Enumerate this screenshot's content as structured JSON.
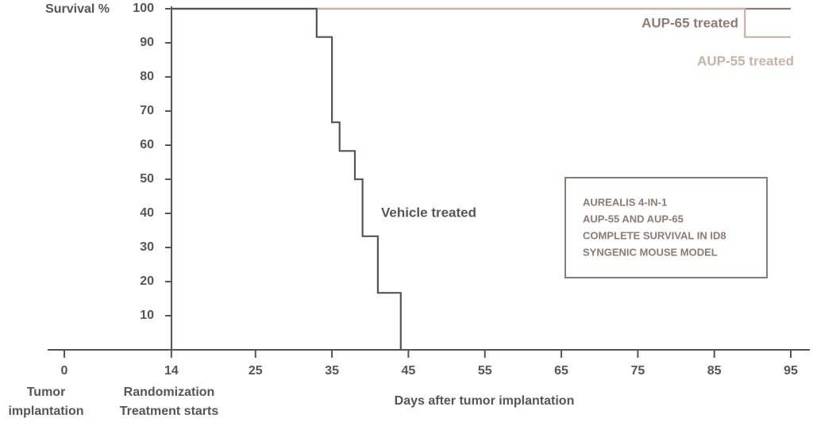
{
  "chart_data": {
    "type": "step",
    "y_label": "Survival %",
    "x_label": "Days after tumor implantation",
    "xlim": [
      0,
      95
    ],
    "xticks": [
      0,
      14,
      25,
      35,
      45,
      55,
      65,
      75,
      85,
      95
    ],
    "ylim": [
      0,
      100
    ],
    "yticks": [
      10,
      20,
      30,
      40,
      50,
      60,
      70,
      80,
      90,
      100
    ],
    "x_annotations": [
      {
        "x": 0,
        "lines": [
          "Tumor",
          "implantation"
        ]
      },
      {
        "x": 14,
        "lines": [
          "Randomization",
          "Treatment starts"
        ]
      }
    ],
    "series": [
      {
        "name": "AUP-65 treated",
        "color": "#8c7b74",
        "x": [
          14,
          95
        ],
        "values": [
          100,
          100
        ]
      },
      {
        "name": "AUP-55 treated",
        "color": "#c7b3a6",
        "x": [
          14,
          89,
          95
        ],
        "values": [
          100,
          91.7,
          91.7
        ]
      },
      {
        "name": "Vehicle treated",
        "color": "#555555",
        "x": [
          14,
          33,
          35,
          36,
          38,
          39,
          41,
          44
        ],
        "values": [
          100,
          91.7,
          66.7,
          58.3,
          50,
          33.3,
          16.7,
          0
        ]
      }
    ],
    "box_text": [
      "AUREALIS 4-IN-1",
      "AUP-55 AND AUP-65",
      "COMPLETE SURVIVAL IN ID8",
      "SYNGENIC MOUSE MODEL"
    ]
  }
}
